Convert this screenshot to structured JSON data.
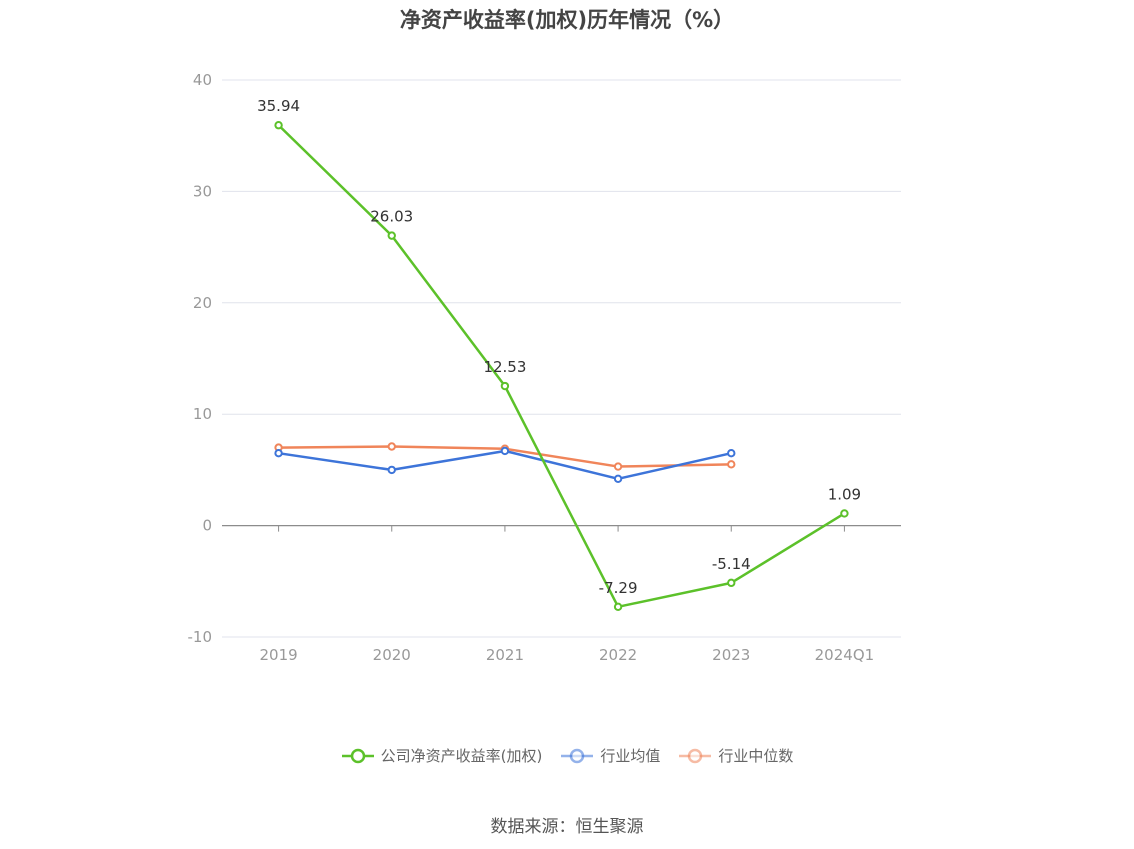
{
  "title": "净资产收益率(加权)历年情况（%）",
  "source": "数据来源：恒生聚源",
  "chart_data": {
    "type": "line",
    "title": "净资产收益率(加权)历年情况（%）",
    "categories": [
      "2019",
      "2020",
      "2021",
      "2022",
      "2023",
      "2024Q1"
    ],
    "ylim": [
      -10,
      40
    ],
    "yticks": [
      40,
      30,
      20,
      10,
      0,
      -10
    ],
    "grid": true,
    "legend_position": "bottom-center",
    "series": [
      {
        "name": "公司净资产收益率(加权)",
        "color": "#5cc12a",
        "values": [
          35.94,
          26.03,
          12.53,
          -7.29,
          -5.14,
          1.09
        ],
        "labels": [
          "35.94",
          "26.03",
          "12.53",
          "-7.29",
          "-5.14",
          "1.09"
        ]
      },
      {
        "name": "行业均值",
        "color": "#3d74d9",
        "values": [
          6.5,
          5.0,
          6.7,
          4.2,
          6.5,
          null
        ]
      },
      {
        "name": "行业中位数",
        "color": "#f0855a",
        "values": [
          7.0,
          7.1,
          6.9,
          5.3,
          5.5,
          null
        ]
      }
    ]
  }
}
